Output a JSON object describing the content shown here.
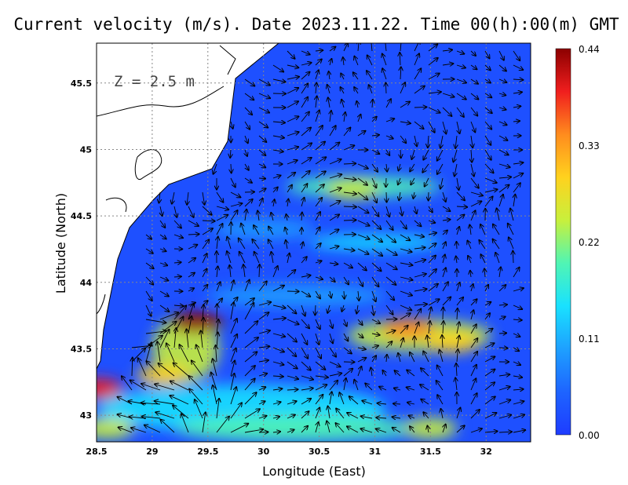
{
  "chart_data": {
    "type": "heatmap",
    "title": "Current velocity (m/s). Date 2023.11.22. Time 00(h):00(m) GMT",
    "xlabel": "Longitude (East)",
    "ylabel": "Latitude (North)",
    "annotation": "Z = 2.5 m",
    "xlim": [
      28.5,
      32.4
    ],
    "ylim": [
      42.8,
      45.8
    ],
    "xticks": [
      "28.5",
      "29",
      "29.5",
      "30",
      "30.5",
      "31",
      "31.5",
      "32"
    ],
    "yticks": [
      "43",
      "43.5",
      "44",
      "44.5",
      "45",
      "45.5"
    ],
    "grid": true,
    "colorbar": {
      "label_values": [
        "0.00",
        "0.11",
        "0.22",
        "0.33",
        "0.44"
      ],
      "min": 0,
      "max": 0.44,
      "colors": [
        "#1e3cff",
        "#1e64ff",
        "#1ea0ff",
        "#19e1ff",
        "#50f5b4",
        "#c8f03c",
        "#ffd21e",
        "#ff8c1e",
        "#f01e1e",
        "#8c0000"
      ]
    },
    "speed_peaks": [
      {
        "lon": 29.4,
        "lat": 43.7,
        "speed": 0.42
      },
      {
        "lon": 31.3,
        "lat": 43.65,
        "speed": 0.33
      },
      {
        "lon": 31.7,
        "lat": 43.55,
        "speed": 0.3
      },
      {
        "lon": 29.1,
        "lat": 43.3,
        "speed": 0.3
      },
      {
        "lon": 28.6,
        "lat": 42.9,
        "speed": 0.26
      },
      {
        "lon": 30.8,
        "lat": 44.7,
        "speed": 0.22
      },
      {
        "lon": 31.5,
        "lat": 42.9,
        "speed": 0.22
      },
      {
        "lon": 28.5,
        "lat": 43.2,
        "speed": 0.4
      }
    ],
    "colors": {
      "land": "#ffffff",
      "coast": "#000000",
      "arrows": "#000000",
      "grid": "#888888"
    }
  }
}
